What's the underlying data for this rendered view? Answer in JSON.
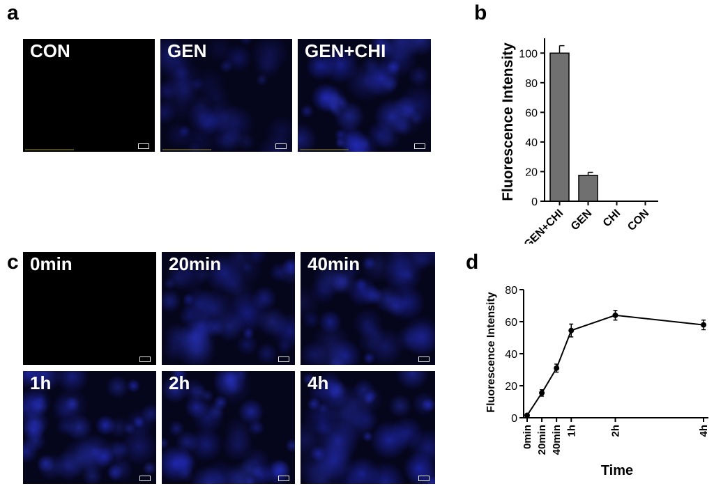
{
  "panels": {
    "a": {
      "letter": "a",
      "images": [
        "CON",
        "GEN",
        "GEN+CHI"
      ]
    },
    "b": {
      "letter": "b"
    },
    "c": {
      "letter": "c",
      "images": [
        "0min",
        "20min",
        "40min",
        "1h",
        "2h",
        "4h"
      ]
    },
    "d": {
      "letter": "d"
    }
  },
  "colors": {
    "bar_fill": "#707070",
    "image_base": "#05051c",
    "image_dark": "#000000"
  },
  "chart_data": [
    {
      "type": "bar",
      "categories": [
        "GEN+CHI",
        "GEN",
        "CHI",
        "CON"
      ],
      "values": [
        100,
        17.5,
        0,
        0
      ],
      "errors": [
        5,
        2,
        0,
        0
      ],
      "ylabel": "Fluorescence Intensity",
      "xlabel": "",
      "ylim": [
        0,
        110
      ],
      "yticks": [
        0,
        20,
        40,
        60,
        80,
        100
      ],
      "grid": false
    },
    {
      "type": "line",
      "x": [
        0,
        20,
        40,
        60,
        120,
        240
      ],
      "x_tick_labels": [
        "0min",
        "20min",
        "40min",
        "1h",
        "2h",
        "4h"
      ],
      "values": [
        1.5,
        15.5,
        31,
        54.5,
        64,
        58
      ],
      "errors": [
        1,
        2,
        2.5,
        4,
        3,
        3
      ],
      "ylabel": "Fluorescence Intensity",
      "xlabel": "Time",
      "ylim": [
        0,
        80
      ],
      "yticks": [
        0,
        20,
        40,
        60,
        80
      ],
      "grid": false
    }
  ]
}
